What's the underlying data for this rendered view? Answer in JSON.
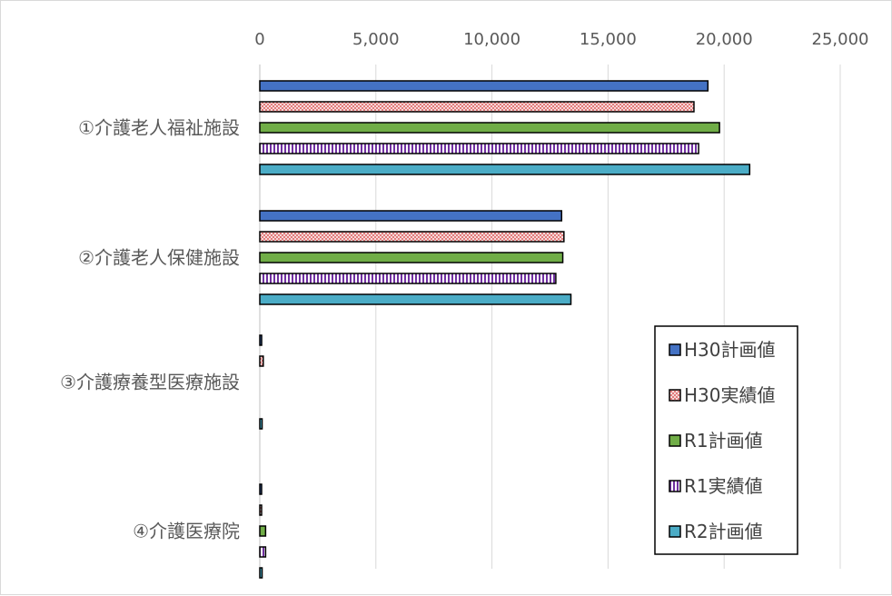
{
  "chart_data": {
    "type": "bar",
    "orientation": "horizontal",
    "title": "",
    "xlabel": "",
    "ylabel": "",
    "xlim": [
      0,
      25000
    ],
    "x_ticks": [
      0,
      5000,
      10000,
      15000,
      20000,
      25000
    ],
    "x_tick_labels": [
      "0",
      "5,000",
      "10,000",
      "15,000",
      "20,000",
      "25,000"
    ],
    "x_axis_position": "top",
    "grid": true,
    "legend_position": "bottom-right",
    "categories": [
      "①介護老人福祉施設",
      "②介護老人保健施設",
      "③介護療養型医療施設",
      "④介護医療院"
    ],
    "series": [
      {
        "name": "H30計画値",
        "color": "#4472c4",
        "pattern": "solid",
        "values": [
          19300,
          13000,
          80,
          30
        ]
      },
      {
        "name": "H30実績値",
        "color": "#f4b6b6",
        "pattern": "crosshatch",
        "values": [
          18700,
          13100,
          150,
          20
        ]
      },
      {
        "name": "R1計画値",
        "color": "#70ad47",
        "pattern": "solid",
        "values": [
          19800,
          13050,
          0,
          250
        ]
      },
      {
        "name": "R1実績値",
        "color": "#7030a0",
        "pattern": "vertical-stripes",
        "values": [
          18900,
          12750,
          0,
          250
        ]
      },
      {
        "name": "R2計画値",
        "color": "#4bacc6",
        "pattern": "solid",
        "values": [
          21100,
          13400,
          100,
          100
        ]
      }
    ]
  }
}
